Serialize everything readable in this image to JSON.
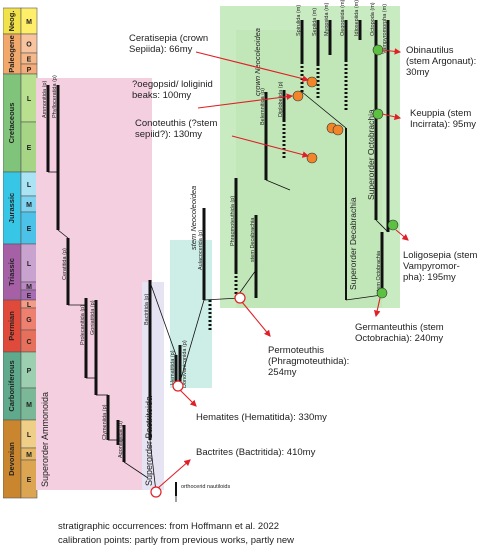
{
  "timescale": {
    "periods": [
      {
        "key": "neogene",
        "label": "Neog.",
        "color": "#f2e24a",
        "epochs": [
          {
            "label": "M",
            "color": "#ffee6a"
          }
        ]
      },
      {
        "key": "paleogene",
        "label": "Paleogene",
        "color": "#f2a86a",
        "epochs": [
          {
            "label": "O",
            "color": "#f8c4a0"
          },
          {
            "label": "E",
            "color": "#f6b888"
          },
          {
            "label": "P",
            "color": "#f4ac7a"
          }
        ]
      },
      {
        "key": "cretaceous",
        "label": "Cretaceous",
        "color": "#7fc47a",
        "epochs": [
          {
            "label": "L",
            "color": "#b8e08e"
          },
          {
            "label": "E",
            "color": "#a5d585"
          }
        ]
      },
      {
        "key": "jurassic",
        "label": "Jurassic",
        "color": "#38c6e6",
        "epochs": [
          {
            "label": "L",
            "color": "#a9e3f4"
          },
          {
            "label": "M",
            "color": "#7fd3ef"
          },
          {
            "label": "E",
            "color": "#4cc2e8"
          }
        ]
      },
      {
        "key": "triassic",
        "label": "Triassic",
        "color": "#a560a6",
        "epochs": [
          {
            "label": "L",
            "color": "#c9a3cf"
          },
          {
            "label": "M",
            "color": "#bb88c3"
          },
          {
            "label": "E",
            "color": "#a86cb4"
          }
        ]
      },
      {
        "key": "permian",
        "label": "Permian",
        "color": "#e04a3a",
        "epochs": [
          {
            "label": "L",
            "color": "#f59c88"
          },
          {
            "label": "G",
            "color": "#ee8070"
          },
          {
            "label": "C",
            "color": "#e6705c"
          }
        ]
      },
      {
        "key": "carboniferous",
        "label": "Carboniferous",
        "color": "#5faa8c",
        "epochs": [
          {
            "label": "P",
            "color": "#9ccfb0"
          },
          {
            "label": "M",
            "color": "#7ab898"
          }
        ]
      },
      {
        "key": "devonian",
        "label": "Devonian",
        "color": "#c9862e",
        "epochs": [
          {
            "label": "L",
            "color": "#efcf88"
          },
          {
            "label": "M",
            "color": "#e5b868"
          },
          {
            "label": "E",
            "color": "#dca552"
          }
        ]
      }
    ]
  },
  "groups": {
    "ammonoida": "Superorder Ammonoida",
    "bactritoida": "Superorder Bactritoida",
    "stem_neocoleoidea": "stem Neocoleoidea",
    "crown_neocoleoidea": "crown Neocoleoidea",
    "decabrachia": "Superorder Decabrachia",
    "octobrachia": "Superorder Octobrachia"
  },
  "taxa": {
    "ammonitida": "Ammonitida (p)",
    "phylloceratida": "Phylloceratida (p)",
    "ceratitida": "Ceratitida (p)",
    "prolecanitida": "Prolecanitida (p)",
    "goniatitida": "Goniatitida (p)",
    "clymeniida": "Clymeniida (p)",
    "agoniatitida": "Agoniatitida (p)",
    "bactritida": "Bactritida (p)",
    "hematitida": "Hematitida (p)",
    "donovaniconida": "Donovaniconida (p)",
    "aulacocerida": "Aulacocerida (p)",
    "phragmoteuthida": "Phragmoteuthida (p)",
    "stem_decabrachia": "stem Decabrachia",
    "belemnitida": "Belemnitida (p)",
    "diplobelida": "Diplobelida (p)",
    "spirulida": "Spirulida (m)",
    "sepiida": "Sepiida (m)",
    "myopsida": "Myopsida (m)",
    "oegopsida": "Oegopsida (m)",
    "idiosepiida": "Idiosepiida (m)",
    "octopoda": "Octopoda (m)",
    "vampyromorpha": "Vampyromorpha (m)",
    "stem_octobrachia": "stem Octobrachia",
    "orthocerid": "orthocerid nautiloids"
  },
  "calibrations": {
    "ceratisepia": "Ceratisepia (crown Sepiida): 66my",
    "poegopsid": "?oegopsid/ loliginid beaks: 100my",
    "conoteuthis": "Conoteuthis (?stem sepiid?): 130my",
    "obinautilus": "Obinautilus (stem Argonaut): 30my",
    "keuppia": "Keuppia (stem Incirrata): 95my",
    "loligosepia": "Loligosepia (stem Vampyromorpha): 195my",
    "germanteuthis": "Germanteuthis (stem Octobrachia): 240my",
    "permoteuthis": "Permoteuthis (Phragmoteuthida): 254my",
    "hematites": "Hematites (Hematitida): 330my",
    "bactrites": "Bactrites (Bactritida): 410my"
  },
  "calibration_lines": {
    "ceratisepia": [
      "Ceratisepia (crown",
      "Sepiida): 66my"
    ],
    "poegopsid": [
      "?oegopsid/ loliginid",
      "beaks: 100my"
    ],
    "conoteuthis": [
      "Conoteuthis (?stem",
      "sepiid?): 130my"
    ],
    "obinautilus": [
      "Obinautilus",
      "(stem Argonaut):",
      "30my"
    ],
    "keuppia": [
      "Keuppia (stem",
      "Incirrata): 95my"
    ],
    "loligosepia": [
      "Loligosepia (stem",
      "Vampyromor-",
      "pha): 195my"
    ],
    "germanteuthis": [
      "Germanteuthis (stem",
      "Octobrachia): 240my"
    ],
    "permoteuthis": [
      "Permoteuthis",
      "(Phragmoteuthida):",
      "254my"
    ],
    "hematites": [
      "Hematites (Hematitida): 330my"
    ],
    "bactrites": [
      "Bactrites (Bactritida): 410my"
    ]
  },
  "footer": {
    "line1": "stratigraphic occurrences: from Hoffmann et al. 2022",
    "line2": "calibration points: partly from previous works, partly new"
  },
  "colors": {
    "ammonoida_bg": "#f4cfe0",
    "bactritoida_bg": "#e6e4f2",
    "stem_neo_bg": "#cdeee6",
    "crown_neo_bg": "#c9ebc2",
    "crown_neo_bg_inner": "#b9e4b0",
    "calib_orange": "#f0852a",
    "calib_green": "#5cc040",
    "arrow_red": "#e01f26"
  }
}
